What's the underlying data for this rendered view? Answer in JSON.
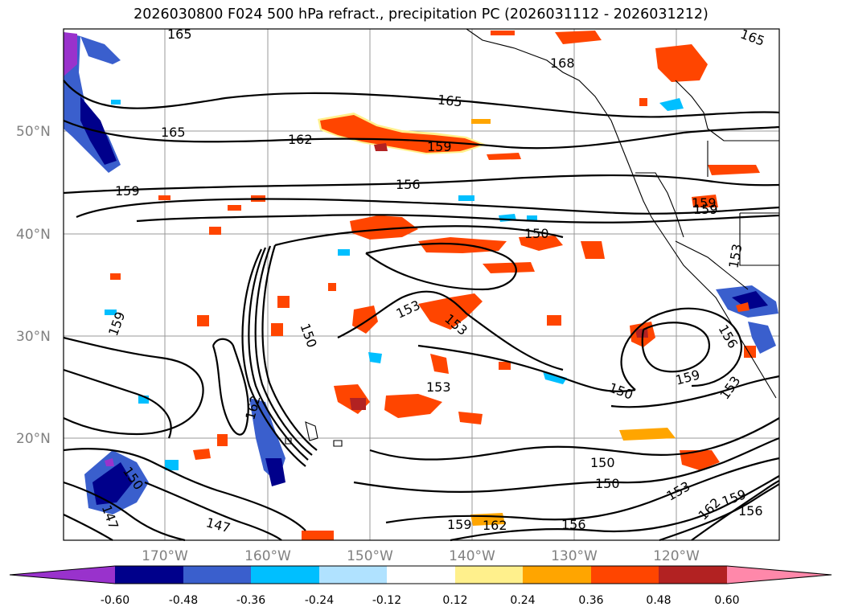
{
  "title": "2026030800 F024 500 hPa refract., precipitation PC (2026031112 - 2026031212)",
  "map": {
    "lat_ticks": [
      "50°N",
      "40°N",
      "30°N",
      "20°N"
    ],
    "lon_ticks": [
      "170°W",
      "160°W",
      "150°W",
      "140°W",
      "130°W",
      "120°W"
    ],
    "contour_labels": [
      "165",
      "165",
      "168",
      "165",
      "165",
      "162",
      "159",
      "159",
      "156",
      "159",
      "159",
      "153",
      "150",
      "153",
      "153",
      "150",
      "159",
      "153",
      "156",
      "150",
      "162",
      "153",
      "150",
      "150",
      "159",
      "153",
      "162",
      "159",
      "156",
      "147",
      "150",
      "147",
      "159",
      "162",
      "156"
    ]
  },
  "colorbar": {
    "levels": [
      "-0.60",
      "-0.48",
      "-0.36",
      "-0.24",
      "-0.12",
      "0.12",
      "0.24",
      "0.36",
      "0.48",
      "0.60"
    ],
    "colors": [
      "#9932cc",
      "#00008b",
      "#3a5fcd",
      "#00bfff",
      "#b0e2ff",
      "#ffffff",
      "#fff08c",
      "#ffa500",
      "#ff4500",
      "#b22222",
      "#ff88aa"
    ]
  }
}
